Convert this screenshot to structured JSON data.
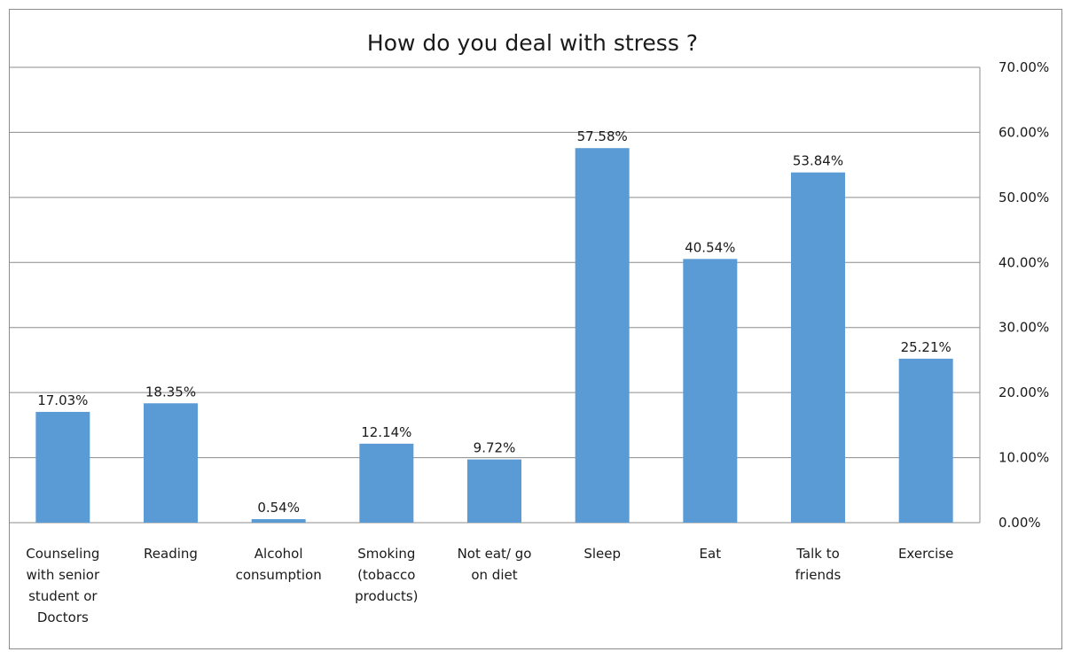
{
  "chart_data": {
    "type": "bar",
    "title": "How do you deal with stress ?",
    "xlabel": "",
    "ylabel": "",
    "categories": [
      "Counseling with senior student or Doctors",
      "Reading",
      "Alcohol consumption",
      "Smoking (tobacco products)",
      "Not eat/ go on diet",
      "Sleep",
      "Eat",
      "Talk to friends",
      "Exercise"
    ],
    "category_lines": [
      [
        "Counseling",
        "with senior",
        "student or",
        "Doctors"
      ],
      [
        "Reading"
      ],
      [
        "Alcohol",
        "consumption"
      ],
      [
        "Smoking",
        "(tobacco",
        "products)"
      ],
      [
        "Not eat/ go",
        "on diet"
      ],
      [
        "Sleep"
      ],
      [
        "Eat"
      ],
      [
        "Talk to",
        "friends"
      ],
      [
        "Exercise"
      ]
    ],
    "values": [
      17.03,
      18.35,
      0.54,
      12.14,
      9.72,
      57.58,
      40.54,
      53.84,
      25.21
    ],
    "data_labels": [
      "17.03%",
      "18.35%",
      "0.54%",
      "12.14%",
      "9.72%",
      "57.58%",
      "40.54%",
      "53.84%",
      "25.21%"
    ],
    "ylim": [
      0,
      70
    ],
    "yticks": [
      0,
      10,
      20,
      30,
      40,
      50,
      60,
      70
    ],
    "ytick_labels": [
      "0.00%",
      "10.00%",
      "20.00%",
      "30.00%",
      "40.00%",
      "50.00%",
      "60.00%",
      "70.00%"
    ],
    "y_axis_side": "right",
    "grid": true,
    "legend": "none",
    "bar_color": "#5b9bd5",
    "grid_color": "#8c8c8c"
  }
}
